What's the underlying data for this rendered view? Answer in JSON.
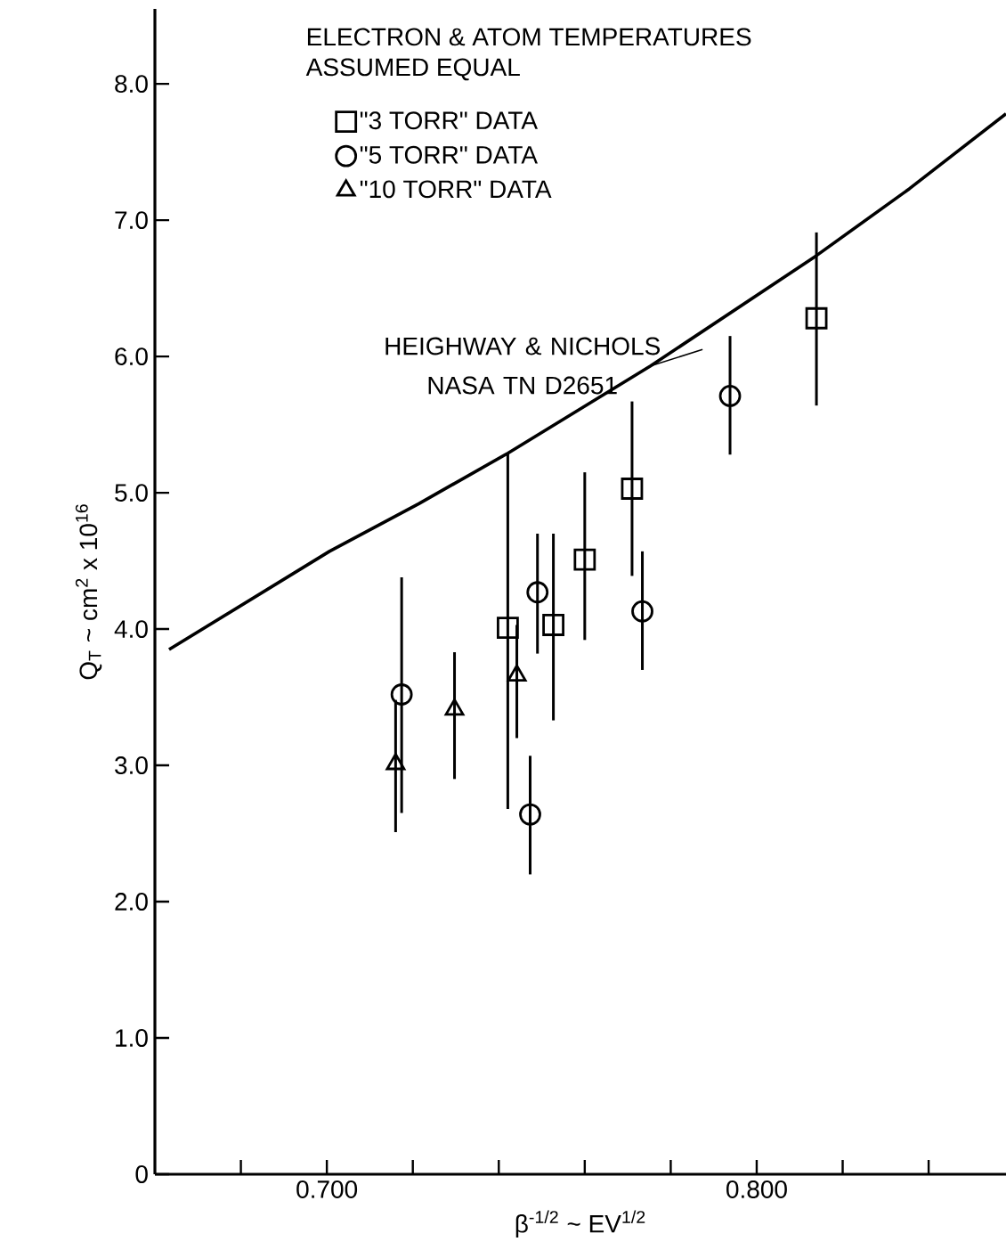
{
  "chart_data": {
    "type": "scatter",
    "xlabel": "β$^{-1/2}$ ~ EV$^{1/2}$",
    "ylabel": "Q$_{T}$ ~ cm$^{2}$ x 10$^{16}$",
    "legend_title": "ELECTRON & ATOM TEMPERATURES ASSUMED EQUAL",
    "legend": "top left",
    "grid": false,
    "xlim": [
      0.66,
      0.858
    ],
    "ylim": [
      0,
      8.55
    ],
    "xticks": [
      {
        "value": 0.68,
        "label": null
      },
      {
        "value": 0.7,
        "label": "0.700"
      },
      {
        "value": 0.72,
        "label": null
      },
      {
        "value": 0.74,
        "label": null
      },
      {
        "value": 0.76,
        "label": null
      },
      {
        "value": 0.78,
        "label": null
      },
      {
        "value": 0.8,
        "label": "0.800"
      },
      {
        "value": 0.82,
        "label": null
      },
      {
        "value": 0.84,
        "label": null
      }
    ],
    "yticks": [
      0,
      {
        "value": 1,
        "label": "1.0"
      },
      {
        "value": 2,
        "label": "2.0"
      },
      {
        "value": 3,
        "label": "3.0"
      },
      {
        "value": 4,
        "label": "4.0"
      },
      {
        "value": 5,
        "label": "5.0"
      },
      {
        "value": 6,
        "label": "6.0"
      },
      {
        "value": 7,
        "label": "7.0"
      },
      {
        "value": 8,
        "label": "8.0"
      }
    ],
    "series": [
      {
        "name": "\"3 TORR\" DATA",
        "color": "#000000",
        "marker": "square",
        "x": [
          0.7421,
          0.7527,
          0.76,
          0.771,
          0.8139
        ],
        "values": [
          4.01,
          4.03,
          4.51,
          5.03,
          6.28
        ],
        "errors": [
          [
            2.68,
            5.29
          ],
          [
            3.33,
            4.7
          ],
          [
            3.92,
            5.15
          ],
          [
            4.39,
            5.67
          ],
          [
            5.64,
            6.91
          ]
        ]
      },
      {
        "name": "\"5 TORR\" DATA",
        "color": "#000000",
        "marker": "circle",
        "x": [
          0.7174,
          0.749,
          0.7473,
          0.7734,
          0.7938
        ],
        "values": [
          3.52,
          4.27,
          2.64,
          4.13,
          5.71
        ],
        "errors": [
          [
            2.65,
            4.38
          ],
          [
            3.82,
            4.7
          ],
          [
            2.2,
            3.07
          ],
          [
            3.7,
            4.57
          ],
          [
            5.28,
            6.15
          ]
        ]
      },
      {
        "name": "\"10 TORR\" DATA",
        "color": "#000000",
        "marker": "triangle",
        "x": [
          0.716,
          0.7297,
          0.7442
        ],
        "values": [
          3.01,
          3.41,
          3.66
        ],
        "errors": [
          [
            2.51,
            3.48
          ],
          [
            2.9,
            3.83
          ],
          [
            3.2,
            4.03
          ]
        ]
      },
      {
        "type": "line",
        "color": "#000000",
        "marker": "none",
        "line_style": "solid",
        "x": [
          0.6633,
          0.7006,
          0.7214,
          0.7421,
          0.7753,
          0.8139,
          0.8355,
          0.858
        ],
        "values": [
          3.85,
          4.57,
          4.92,
          5.29,
          5.93,
          6.74,
          7.23,
          7.78
        ]
      }
    ],
    "annotations": [
      "HEIGHWAY & NICHOLS NASA TN D2651"
    ]
  }
}
